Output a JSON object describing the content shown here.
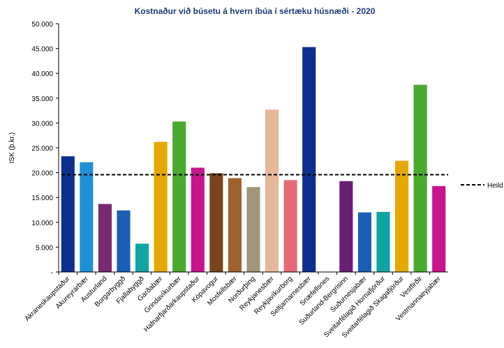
{
  "chart_data": {
    "type": "bar",
    "title": "Kostnaður við búsetu á hvern íbúa í sértæku húsnæði -  2020",
    "xlabel": "",
    "ylabel": "ISK (þ.kr.)",
    "ylim": [
      0,
      50000
    ],
    "yticks": [
      0,
      5000,
      10000,
      15000,
      20000,
      25000,
      30000,
      35000,
      40000,
      45000,
      50000
    ],
    "ytick_labels": [
      "-",
      "5.000",
      "10.000",
      "15.000",
      "20.000",
      "25.000",
      "30.000",
      "35.000",
      "40.000",
      "45.000",
      "50.000"
    ],
    "grid": false,
    "categories": [
      "Akraneskaupstaður",
      "Akureyrarbær",
      "Austurland",
      "Borgarbyggð",
      "Fjallabyggð",
      "Garðabær",
      "Grindavíkurbær",
      "Hafnarfjarðarkaupstaður",
      "Kópavogur",
      "Mosfellsbær",
      "Norðurþing",
      "Reykjanesbær",
      "Reykjavíkurborg",
      "Seltjarnarnesbær",
      "Snæfellsnes",
      "Suðurland-Bergrisinn",
      "Suðurnesjabær",
      "Sveitarfélagið Hornafjörður",
      "Sveitarfélagið Skagafjörður",
      "Vestfirðir",
      "Vestmannaeyjabær"
    ],
    "values": [
      23300,
      22100,
      13700,
      12400,
      5700,
      26200,
      30300,
      21000,
      19900,
      18900,
      17100,
      32700,
      18500,
      45300,
      0,
      18300,
      12000,
      12100,
      22400,
      37700,
      17300
    ],
    "bar_colors": [
      "#0d2f8f",
      "#1e90d6",
      "#7a2a70",
      "#1a5fb4",
      "#12a3a3",
      "#e5a800",
      "#4aaa2e",
      "#c8158b",
      "#7a431c",
      "#a0622e",
      "#a0977a",
      "#e6b89a",
      "#e56a78",
      "#0d2f8f",
      "#ffffff",
      "#6a1f74",
      "#1a5fb4",
      "#12a3a3",
      "#e5a800",
      "#4aaa2e",
      "#c8158b"
    ],
    "reference_line": {
      "name": "Heild",
      "value": 19600,
      "style": "dashed",
      "color": "#000000"
    },
    "legend": {
      "placement": "right",
      "entries": [
        "Heild"
      ]
    }
  }
}
